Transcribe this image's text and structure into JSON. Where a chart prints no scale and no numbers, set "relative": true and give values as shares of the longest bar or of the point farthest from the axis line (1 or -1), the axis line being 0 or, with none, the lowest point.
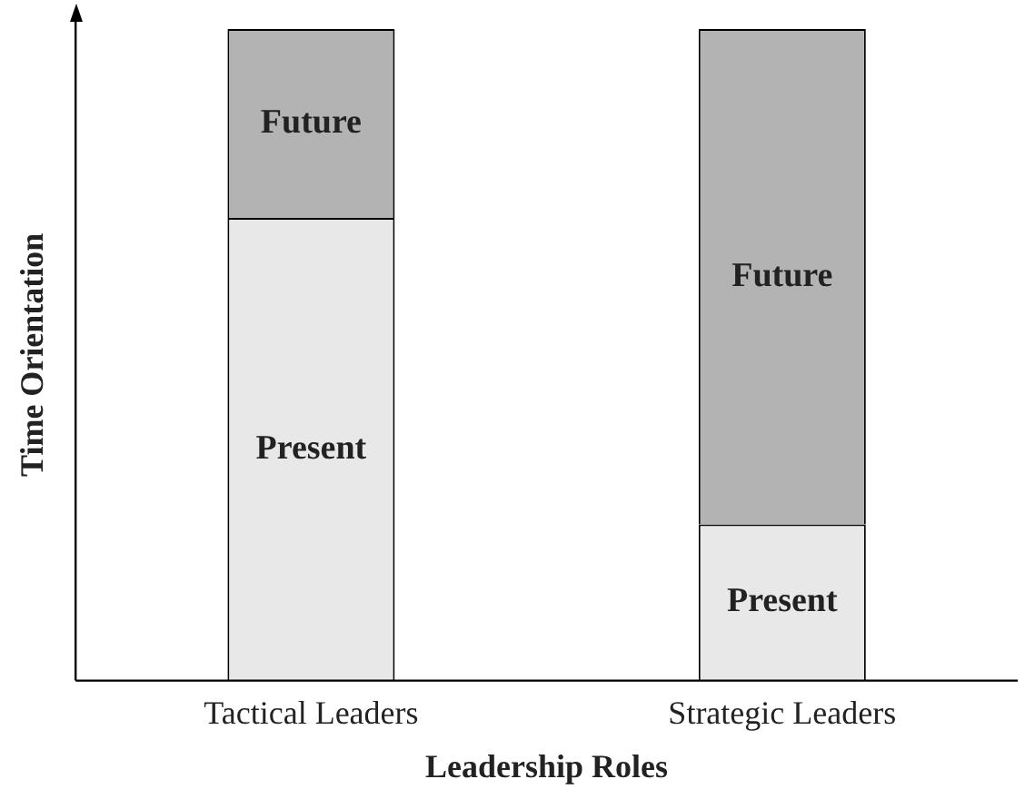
{
  "chart_data": {
    "type": "bar",
    "stacked": true,
    "relative": true,
    "xlabel": "Leadership Roles",
    "ylabel": "Time Orientation",
    "categories": [
      "Tactical Leaders",
      "Strategic Leaders"
    ],
    "legend": false,
    "grid": false,
    "series": [
      {
        "name": "Present",
        "color": "#e8e8e8",
        "values": [
          0.71,
          0.24
        ]
      },
      {
        "name": "Future",
        "color": "#b3b3b3",
        "values": [
          0.29,
          0.76
        ]
      }
    ]
  }
}
